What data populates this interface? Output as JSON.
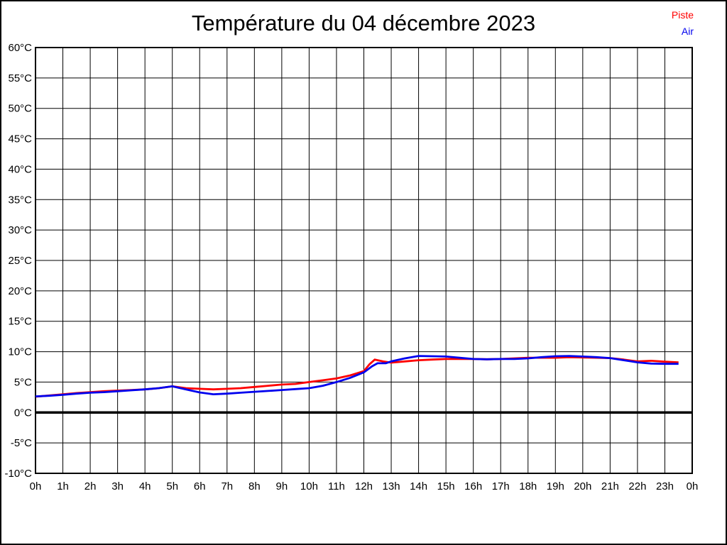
{
  "page": {
    "background": "#ffffff",
    "frame_color": "#000000",
    "grid_color": "#000000"
  },
  "chart_data": {
    "type": "line",
    "title": "Température du 04 décembre 2023",
    "xlabel": "",
    "ylabel": "",
    "xlim": [
      0,
      24
    ],
    "ylim": [
      -10,
      60
    ],
    "grid": true,
    "x_tick_hours": [
      0,
      1,
      2,
      3,
      4,
      5,
      6,
      7,
      8,
      9,
      10,
      11,
      12,
      13,
      14,
      15,
      16,
      17,
      18,
      19,
      20,
      21,
      22,
      23,
      24
    ],
    "x_tick_labels": [
      "0h",
      "1h",
      "2h",
      "3h",
      "4h",
      "5h",
      "6h",
      "7h",
      "8h",
      "9h",
      "10h",
      "11h",
      "12h",
      "13h",
      "14h",
      "15h",
      "16h",
      "17h",
      "18h",
      "19h",
      "20h",
      "21h",
      "22h",
      "23h",
      "0h"
    ],
    "y_tick_values": [
      -10,
      -5,
      0,
      5,
      10,
      15,
      20,
      25,
      30,
      35,
      40,
      45,
      50,
      55,
      60
    ],
    "y_tick_labels": [
      "-10°C",
      "-5°C",
      "0°C",
      "5°C",
      "10°C",
      "15°C",
      "20°C",
      "25°C",
      "30°C",
      "35°C",
      "40°C",
      "45°C",
      "50°C",
      "55°C",
      "60°C"
    ],
    "zero_line": {
      "value": 0,
      "color": "#000000"
    },
    "legend": {
      "position": "top-right"
    },
    "series": [
      {
        "name": "Piste",
        "color": "#ff0000",
        "points": [
          [
            0,
            2.6
          ],
          [
            0.5,
            2.8
          ],
          [
            1,
            3.0
          ],
          [
            1.5,
            3.2
          ],
          [
            2,
            3.35
          ],
          [
            2.5,
            3.5
          ],
          [
            3,
            3.6
          ],
          [
            3.5,
            3.7
          ],
          [
            4,
            3.8
          ],
          [
            4.5,
            4.0
          ],
          [
            5,
            4.3
          ],
          [
            5.5,
            4.0
          ],
          [
            6,
            3.9
          ],
          [
            6.5,
            3.8
          ],
          [
            7,
            3.9
          ],
          [
            7.5,
            4.0
          ],
          [
            8,
            4.2
          ],
          [
            8.5,
            4.4
          ],
          [
            9,
            4.6
          ],
          [
            9.5,
            4.7
          ],
          [
            10,
            5.0
          ],
          [
            10.5,
            5.3
          ],
          [
            11,
            5.6
          ],
          [
            11.5,
            6.1
          ],
          [
            12,
            6.8
          ],
          [
            12.2,
            7.9
          ],
          [
            12.4,
            8.7
          ],
          [
            12.7,
            8.4
          ],
          [
            13,
            8.2
          ],
          [
            13.5,
            8.4
          ],
          [
            14,
            8.6
          ],
          [
            14.5,
            8.7
          ],
          [
            15,
            8.8
          ],
          [
            15.5,
            8.8
          ],
          [
            16,
            8.8
          ],
          [
            16.5,
            8.75
          ],
          [
            17,
            8.8
          ],
          [
            17.5,
            8.9
          ],
          [
            18,
            9.0
          ],
          [
            18.5,
            9.0
          ],
          [
            19,
            9.0
          ],
          [
            19.5,
            9.1
          ],
          [
            20,
            9.05
          ],
          [
            20.5,
            9.0
          ],
          [
            21,
            8.95
          ],
          [
            21.5,
            8.7
          ],
          [
            22,
            8.4
          ],
          [
            22.5,
            8.5
          ],
          [
            23,
            8.35
          ],
          [
            23.5,
            8.25
          ]
        ]
      },
      {
        "name": "Air",
        "color": "#0000ee",
        "points": [
          [
            0,
            2.65
          ],
          [
            0.5,
            2.75
          ],
          [
            1,
            2.9
          ],
          [
            1.5,
            3.1
          ],
          [
            2,
            3.25
          ],
          [
            2.5,
            3.35
          ],
          [
            3,
            3.5
          ],
          [
            3.5,
            3.65
          ],
          [
            4,
            3.8
          ],
          [
            4.5,
            4.0
          ],
          [
            5,
            4.3
          ],
          [
            5.5,
            3.8
          ],
          [
            6,
            3.3
          ],
          [
            6.5,
            3.0
          ],
          [
            7,
            3.1
          ],
          [
            7.5,
            3.25
          ],
          [
            8,
            3.4
          ],
          [
            8.5,
            3.55
          ],
          [
            9,
            3.7
          ],
          [
            9.5,
            3.85
          ],
          [
            10,
            4.0
          ],
          [
            10.5,
            4.4
          ],
          [
            11,
            5.0
          ],
          [
            11.5,
            5.7
          ],
          [
            12,
            6.6
          ],
          [
            12.3,
            7.6
          ],
          [
            12.5,
            8.1
          ],
          [
            12.8,
            8.1
          ],
          [
            13,
            8.4
          ],
          [
            13.5,
            8.9
          ],
          [
            14,
            9.3
          ],
          [
            14.5,
            9.25
          ],
          [
            15,
            9.2
          ],
          [
            15.5,
            9.0
          ],
          [
            16,
            8.8
          ],
          [
            16.5,
            8.75
          ],
          [
            17,
            8.8
          ],
          [
            17.5,
            8.8
          ],
          [
            18,
            8.9
          ],
          [
            18.5,
            9.1
          ],
          [
            19,
            9.25
          ],
          [
            19.5,
            9.3
          ],
          [
            20,
            9.2
          ],
          [
            20.5,
            9.1
          ],
          [
            21,
            8.95
          ],
          [
            21.5,
            8.6
          ],
          [
            22,
            8.25
          ],
          [
            22.5,
            8.05
          ],
          [
            23,
            8.0
          ],
          [
            23.5,
            8.0
          ]
        ]
      }
    ]
  }
}
